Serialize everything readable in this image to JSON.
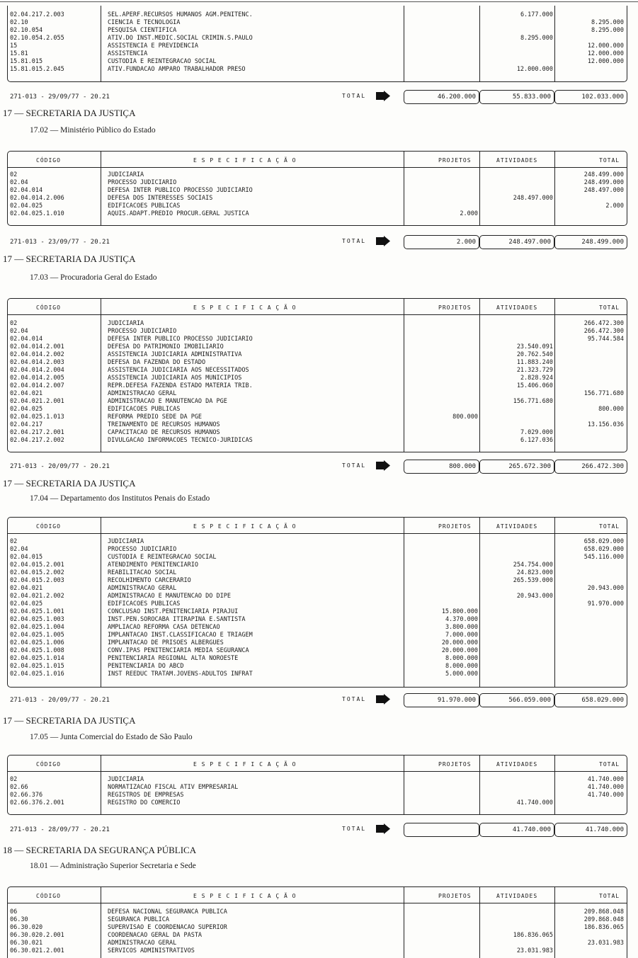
{
  "columns": {
    "codigo": "CÓDIGO",
    "especificacao": "E S P E C I F I C A Ç Ã O",
    "projetos": "PROJETOS",
    "atividades": "ATIVIDADES",
    "total": "TOTAL"
  },
  "footer_label": "TOTAL",
  "sections": [
    {
      "dept": "",
      "sub": "",
      "show_header": false,
      "rows": [
        [
          "02.04.217.2.003",
          "SEL.APERF.RECURSOS HUMANOS AGM.PENITENC.",
          "",
          "6.177.000",
          ""
        ],
        [
          "02.10",
          "CIENCIA E TECNOLOGIA",
          "",
          "",
          "8.295.000"
        ],
        [
          "02.10.054",
          "PESQUISA CIENTIFICA",
          "",
          "",
          "8.295.000"
        ],
        [
          "02.10.054.2.055",
          "ATIV.DO INST.MEDIC.SOCIAL CRIMIN.S.PAULO",
          "",
          "8.295.000",
          ""
        ],
        [
          "15",
          "ASSISTENCIA E PREVIDENCIA",
          "",
          "",
          "12.000.000"
        ],
        [
          "15.81",
          "ASSISTENCIA",
          "",
          "",
          "12.000.000"
        ],
        [
          "15.81.015",
          "CUSTODIA E REINTEGRACAO SOCIAL",
          "",
          "",
          "12.000.000"
        ],
        [
          "15.81.015.2.045",
          "ATIV.FUNDACAO AMPARO TRABALHADOR PRESO",
          "",
          "12.000.000",
          ""
        ]
      ],
      "footer": {
        "date": "271-013 - 29/09/77 - 20.21",
        "projetos": "46.200.000",
        "atividades": "55.833.000",
        "total": "102.033.000"
      }
    },
    {
      "dept": "17 — SECRETARIA DA JUSTIÇA",
      "sub": "17.02 — Ministério Público do Estado",
      "show_header": true,
      "rows": [
        [
          "02",
          "JUDICIARIA",
          "",
          "",
          "248.499.000"
        ],
        [
          "02.04",
          "PROCESSO JUDICIARIO",
          "",
          "",
          "248.499.000"
        ],
        [
          "02.04.014",
          "DEFESA INTER PUBLICO PROCESSO JUDICIARIO",
          "",
          "",
          "248.497.000"
        ],
        [
          "02.04.014.2.006",
          "DEFESA DOS INTERESSES SOCIAIS",
          "",
          "248.497.000",
          ""
        ],
        [
          "02.04.025",
          "EDIFICACOES PUBLICAS",
          "",
          "",
          "2.000"
        ],
        [
          "02.04.025.1.010",
          "AQUIS.ADAPT.PREDIO PROCUR.GERAL JUSTICA",
          "2.000",
          "",
          ""
        ]
      ],
      "footer": {
        "date": "271-013 - 23/09/77 - 20.21",
        "projetos": "2.000",
        "atividades": "248.497.000",
        "total": "248.499.000"
      }
    },
    {
      "dept": "17 — SECRETARIA DA JUSTIÇA",
      "sub": "17.03 — Procuradoria Geral do Estado",
      "show_header": true,
      "rows": [
        [
          "02",
          "JUDICIARIA",
          "",
          "",
          "266.472.300"
        ],
        [
          "02.04",
          "PROCESSO JUDICIARIO",
          "",
          "",
          "266.472.300"
        ],
        [
          "02.04.014",
          "DEFESA INTER PUBLICO PROCESSO JUDICIARIO",
          "",
          "",
          "95.744.584"
        ],
        [
          "02.04.014.2.001",
          "DEFESA DO PATRIMONIO IMOBILIARIO",
          "",
          "23.540.091",
          ""
        ],
        [
          "02.04.014.2.002",
          "ASSISTENCIA JUDICIARIA ADMINISTRATIVA",
          "",
          "20.762.540",
          ""
        ],
        [
          "02.04.014.2.003",
          "DEFESA DA FAZENDA DO ESTADO",
          "",
          "11.883.240",
          ""
        ],
        [
          "02.04.014.2.004",
          "ASSISTENCIA JUDICIARIA AOS NECESSITADOS",
          "",
          "21.323.729",
          ""
        ],
        [
          "02.04.014.2.005",
          "ASSISTENCIA JUDICIARIA AOS MUNICIPIOS",
          "",
          "2.828.924",
          ""
        ],
        [
          "02.04.014.2.007",
          "REPR.DEFESA FAZENDA ESTADO MATERIA TRIB.",
          "",
          "15.406.060",
          ""
        ],
        [
          "02.04.021",
          "ADMINISTRACAO GERAL",
          "",
          "",
          "156.771.680"
        ],
        [
          "02.04.021.2.001",
          "ADMINISTRACAO E MANUTENCAO DA PGE",
          "",
          "156.771.680",
          ""
        ],
        [
          "02.04.025",
          "EDIFICACOES PUBLICAS",
          "",
          "",
          "800.000"
        ],
        [
          "02.04.025.1.013",
          "REFORMA PREDIO SEDE DA PGE",
          "800.000",
          "",
          ""
        ],
        [
          "02.04.217",
          "TREINAMENTO DE RECURSOS HUMANOS",
          "",
          "",
          "13.156.036"
        ],
        [
          "02.04.217.2.001",
          "CAPACITACAO DE RECURSOS HUMANOS",
          "",
          "7.029.000",
          ""
        ],
        [
          "02.04.217.2.002",
          "DIVULGACAO INFORMACOES TECNICO-JURIDICAS",
          "",
          "6.127.036",
          ""
        ]
      ],
      "footer": {
        "date": "271-013 - 20/09/77 - 20.21",
        "projetos": "800.000",
        "atividades": "265.672.300",
        "total": "266.472.300"
      }
    },
    {
      "dept": "17 — SECRETARIA DA JUSTIÇA",
      "sub": "17.04 — Departamento dos Institutos Penais do Estado",
      "show_header": true,
      "rows": [
        [
          "02",
          "JUDICIARIA",
          "",
          "",
          "658.029.000"
        ],
        [
          "02.04",
          "PROCESSO JUDICIARIO",
          "",
          "",
          "658.029.000"
        ],
        [
          "02.04.015",
          "CUSTODIA E REINTEGRACAO SOCIAL",
          "",
          "",
          "545.116.000"
        ],
        [
          "02.04.015.2.001",
          "ATENDIMENTO PENITENCIARIO",
          "",
          "254.754.000",
          ""
        ],
        [
          "02.04.015.2.002",
          "REABILITACAO SOCIAL",
          "",
          "24.823.000",
          ""
        ],
        [
          "02.04.015.2.003",
          "RECOLHIMENTO CARCERARIO",
          "",
          "265.539.000",
          ""
        ],
        [
          "02.04.021",
          "ADMINISTRACAO GERAL",
          "",
          "",
          "20.943.000"
        ],
        [
          "02.04.021.2.002",
          "ADMINISTRACAO E MANUTENCAO DO DIPE",
          "",
          "20.943.000",
          ""
        ],
        [
          "02.04.025",
          "EDIFICACOES PUBLICAS",
          "",
          "",
          "91.970.000"
        ],
        [
          "02.04.025.1.001",
          "CONCLUSAO INST.PENITENCIARIA PIRAJUI",
          "15.800.000",
          "",
          ""
        ],
        [
          "02.04.025.1.003",
          "INST.PEN.SOROCABA ITIRAPINA E.SANTISTA",
          "4.370.000",
          "",
          ""
        ],
        [
          "02.04.025.1.004",
          "AMPLIACAO REFORMA CASA DETENCAO",
          "3.800.000",
          "",
          ""
        ],
        [
          "02.04.025.1.005",
          "IMPLANTACAO INST.CLASSIFICACAO E TRIAGEM",
          "7.000.000",
          "",
          ""
        ],
        [
          "02.04.025.1.006",
          "IMPLANTACAO DE PRISOES ALBERGUES",
          "20.000.000",
          "",
          ""
        ],
        [
          "02.04.025.1.008",
          "CONV.IPAS PENITENCIARIA MEDIA SEGURANCA",
          "20.000.000",
          "",
          ""
        ],
        [
          "02.04.025.1.014",
          "PENITENCIARIA REGIONAL ALTA NOROESTE",
          "8.000.000",
          "",
          ""
        ],
        [
          "02.04.025.1.015",
          "PENITENCIARIA DO ABCD",
          "8.000.000",
          "",
          ""
        ],
        [
          "02.04.025.1.016",
          "INST REEDUC TRATAM.JOVENS-ADULTOS INFRAT",
          "5.000.000",
          "",
          ""
        ]
      ],
      "footer": {
        "date": "271-013 - 20/09/77 - 20.21",
        "projetos": "91.970.000",
        "atividades": "566.059.000",
        "total": "658.029.000"
      }
    },
    {
      "dept": "17 — SECRETARIA DA JUSTIÇA",
      "sub": "17.05 — Junta Comercial do Estado de São Paulo",
      "show_header": true,
      "rows": [
        [
          "02",
          "JUDICIARIA",
          "",
          "",
          "41.740.000"
        ],
        [
          "02.66",
          "NORMATIZACAO FISCAL ATIV EMPRESARIAL",
          "",
          "",
          "41.740.000"
        ],
        [
          "02.66.376",
          "REGISTROS DE EMPRESAS",
          "",
          "",
          "41.740.000"
        ],
        [
          "02.66.376.2.001",
          "REGISTRO DO COMERCIO",
          "",
          "41.740.000",
          ""
        ]
      ],
      "footer": {
        "date": "271-013 - 28/09/77 - 20.21",
        "projetos": "",
        "atividades": "41.740.000",
        "total": "41.740.000"
      }
    },
    {
      "dept": "18 — SECRETARIA DA SEGURANÇA PÚBLICA",
      "sub": "18.01 — Administração Superior Secretaria e Sede",
      "show_header": true,
      "rows": [
        [
          "06",
          "DEFESA NACIONAL SEGURANCA PUBLICA",
          "",
          "",
          "209.868.048"
        ],
        [
          "06.30",
          "SEGURANCA PUBLICA",
          "",
          "",
          "209.868.048"
        ],
        [
          "06.30.020",
          "SUPERVISAO E COORDENACAO SUPERIOR",
          "",
          "",
          "186.836.065"
        ],
        [
          "06.30.020.2.001",
          "COORDENACAO GERAL DA PASTA",
          "",
          "186.836.065",
          ""
        ],
        [
          "06.30.021",
          "ADMINISTRACAO GERAL",
          "",
          "",
          "23.031.983"
        ],
        [
          "06.30.021.2.001",
          "SERVICOS ADMINISTRATIVOS",
          "",
          "23.031.983",
          ""
        ]
      ],
      "footer": null
    }
  ]
}
